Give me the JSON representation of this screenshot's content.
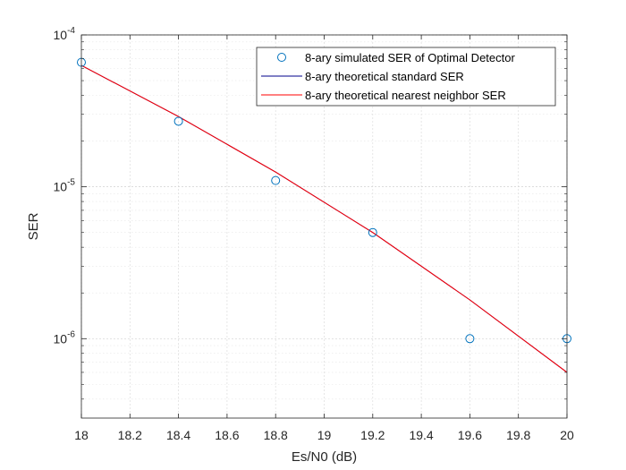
{
  "chart_data": {
    "type": "line",
    "xlabel": "Es/N0 (dB)",
    "ylabel": "SER",
    "xlim": [
      18,
      20
    ],
    "ylim": [
      3e-07,
      0.0001
    ],
    "yscale": "log",
    "grid": true,
    "minor_grid": true,
    "legend_position": "top-right",
    "x_ticks": [
      18,
      18.2,
      18.4,
      18.6,
      18.8,
      19,
      19.2,
      19.4,
      19.6,
      19.8,
      20
    ],
    "x_tick_labels": [
      "18",
      "18.2",
      "18.4",
      "18.6",
      "18.8",
      "19",
      "19.2",
      "19.4",
      "19.6",
      "19.8",
      "20"
    ],
    "y_ticks": [
      1e-06,
      1e-05,
      0.0001
    ],
    "y_tick_labels": [
      {
        "base": "10",
        "exp": "-6"
      },
      {
        "base": "10",
        "exp": "-5"
      },
      {
        "base": "10",
        "exp": "-4"
      }
    ],
    "series": [
      {
        "name": "8-ary simulated SER of Optimal Detector",
        "style": "markers",
        "marker": "circle",
        "color": "#0072BD",
        "x": [
          18,
          18.4,
          18.8,
          19.2,
          19.6,
          20
        ],
        "y": [
          6.6e-05,
          2.7e-05,
          1.1e-05,
          5e-06,
          1e-06,
          1e-06
        ]
      },
      {
        "name": "8-ary theoretical standard SER",
        "style": "line",
        "color": "#00008B",
        "x": [
          18,
          18.4,
          18.8,
          19.2,
          19.6,
          20
        ],
        "y": [
          6.3e-05,
          2.9e-05,
          1.25e-05,
          5e-06,
          1.8e-06,
          6e-07
        ]
      },
      {
        "name": "8-ary theoretical nearest neighbor SER",
        "style": "line",
        "color": "#FF0000",
        "x": [
          18,
          18.4,
          18.8,
          19.2,
          19.6,
          20
        ],
        "y": [
          6.3e-05,
          2.9e-05,
          1.25e-05,
          5e-06,
          1.8e-06,
          6e-07
        ]
      }
    ]
  }
}
